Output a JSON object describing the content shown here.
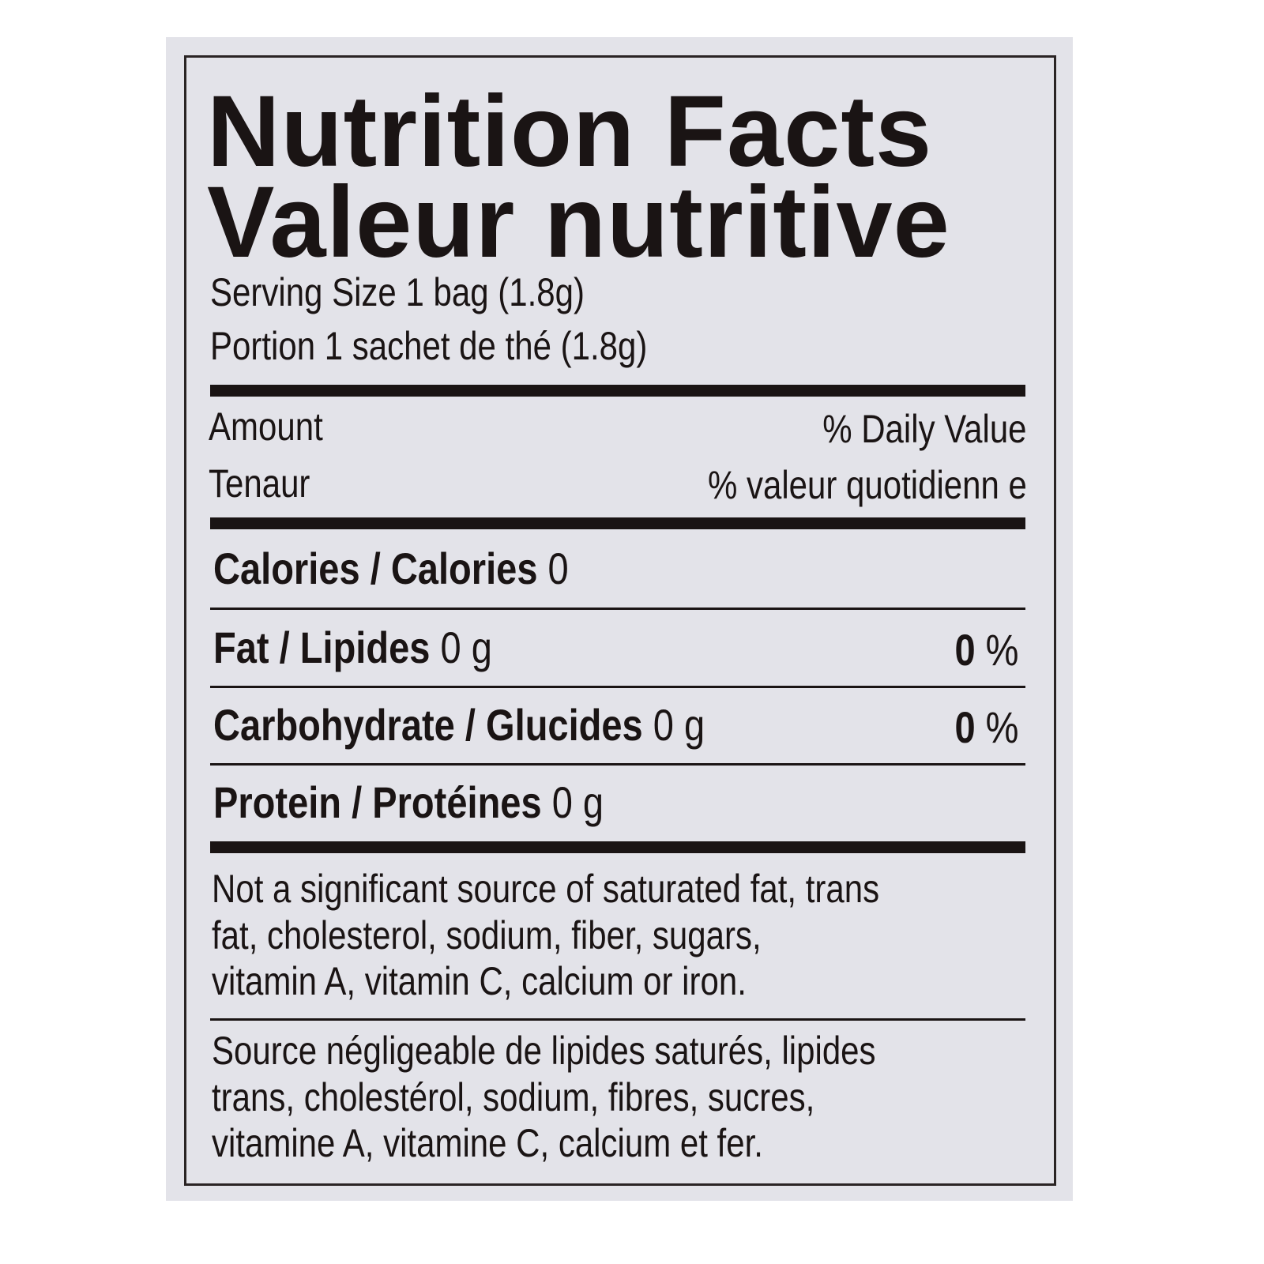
{
  "title_en": "Nutrition Facts",
  "title_fr": "Valeur nutritive",
  "serving_en": "Serving Size 1 bag (1.8g)",
  "serving_fr": "Portion 1 sachet de thé (1.8g)",
  "amount_en": "Amount",
  "amount_fr": "Tenaur",
  "dv_en": "% Daily  Value",
  "dv_fr": "% valeur quotidienn e",
  "nutrients": [
    {
      "label": "Calories / Calories",
      "amount": "0",
      "dv": ""
    },
    {
      "label": "Fat / Lipides",
      "amount": "0 g",
      "dv_num": "0",
      "dv_unit": "%"
    },
    {
      "label": "Carbohydrate / Glucides",
      "amount": "0 g",
      "dv_num": "0",
      "dv_unit": "%"
    },
    {
      "label": "Protein / Protéines",
      "amount": "0 g",
      "dv": ""
    }
  ],
  "footnote_en": [
    "Not a significant source of saturated fat, trans",
    "fat, cholesterol, sodium, fiber, sugars,",
    "vitamin A, vitamin C, calcium or iron."
  ],
  "footnote_fr": [
    "Source négligeable de lipides saturés, lipides",
    "trans, cholestérol, sodium, fibres, sucres,",
    "vitamine A, vitamine C, calcium et fer."
  ],
  "colors": {
    "background": "#e3e3e9",
    "ink": "#1a1414"
  }
}
